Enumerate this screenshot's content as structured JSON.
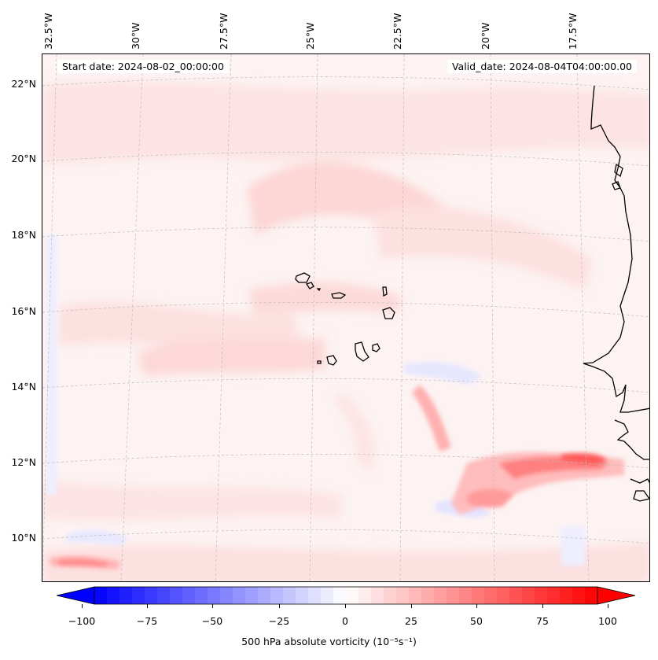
{
  "map": {
    "start_date": "Start date: 2024-08-02_00:00:00",
    "valid_date": "Valid_date: 2024-08-04T04:00:00.00",
    "longitude_labels": [
      "32.5°W",
      "30°W",
      "27.5°W",
      "25°W",
      "22.5°W",
      "20°W",
      "17.5°W"
    ],
    "latitude_labels": [
      "22°N",
      "20°N",
      "18°N",
      "16°N",
      "14°N",
      "12°N",
      "10°N"
    ],
    "colors": {
      "coastline": "#000000",
      "gridline": "#bbbbbb",
      "background_weak_positive": "#fdf3f3",
      "strong_positive": "#ff2a2a",
      "negative": "#5555ff"
    }
  },
  "colorbar": {
    "label": "500 hPa absolute vorticity (10⁻⁵s⁻¹)",
    "tick_labels": [
      "−100",
      "−75",
      "−50",
      "−25",
      "0",
      "25",
      "50",
      "75",
      "100"
    ],
    "range": [
      -100,
      100
    ],
    "levels": 40
  }
}
